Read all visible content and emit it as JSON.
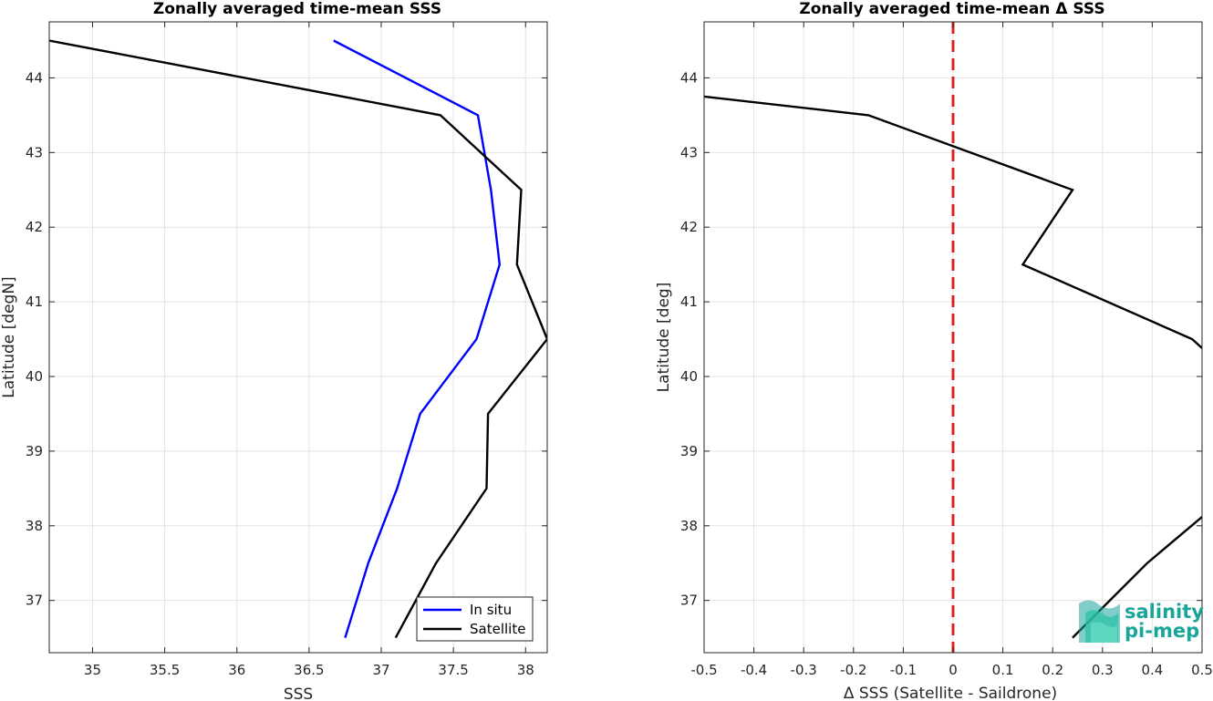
{
  "chart_data": [
    {
      "type": "line",
      "title": "Zonally averaged time-mean SSS",
      "xlabel": "SSS",
      "ylabel": "Latitude [degN]",
      "xlim": [
        34.7,
        38.15
      ],
      "ylim": [
        36.3,
        44.75
      ],
      "xticks": [
        "35",
        "35.5",
        "36",
        "36.5",
        "37",
        "37.5",
        "38"
      ],
      "yticks": [
        "37",
        "38",
        "39",
        "40",
        "41",
        "42",
        "43",
        "44"
      ],
      "grid": true,
      "legend_position": "bottom-right",
      "series": [
        {
          "name": "In situ",
          "color": "#0000ff",
          "points": [
            [
              36.67,
              44.5
            ],
            [
              37.67,
              43.5
            ],
            [
              37.76,
              42.5
            ],
            [
              37.82,
              41.5
            ],
            [
              37.66,
              40.5
            ],
            [
              37.27,
              39.5
            ],
            [
              37.11,
              38.5
            ],
            [
              36.91,
              37.5
            ],
            [
              36.75,
              36.5
            ]
          ]
        },
        {
          "name": "Satellite",
          "color": "#000000",
          "points": [
            [
              34.7,
              44.5
            ],
            [
              37.41,
              43.5
            ],
            [
              37.97,
              42.5
            ],
            [
              37.94,
              41.5
            ],
            [
              38.15,
              40.5
            ],
            [
              37.74,
              39.5
            ],
            [
              37.73,
              38.5
            ],
            [
              37.38,
              37.5
            ],
            [
              37.1,
              36.5
            ]
          ]
        }
      ]
    },
    {
      "type": "line",
      "title": "Zonally averaged time-mean Δ SSS",
      "xlabel": "Δ SSS (Satellite - Saildrone)",
      "ylabel": "Latitude [deg]",
      "xlim": [
        -0.5,
        0.5
      ],
      "ylim": [
        36.3,
        44.75
      ],
      "xticks": [
        "-0.5",
        "-0.4",
        "-0.3",
        "-0.2",
        "-0.1",
        "0",
        "0.1",
        "0.2",
        "0.3",
        "0.4",
        "0.5"
      ],
      "yticks": [
        "37",
        "38",
        "39",
        "40",
        "41",
        "42",
        "43",
        "44"
      ],
      "grid": true,
      "reference_line": {
        "x": 0,
        "color": "#e02020",
        "style": "dashed"
      },
      "series": [
        {
          "color": "#000000",
          "points": [
            [
              -0.5,
              43.75
            ],
            [
              -0.17,
              43.5
            ],
            [
              0.24,
              42.5
            ],
            [
              0.14,
              41.5
            ],
            [
              0.48,
              40.5
            ],
            [
              0.5,
              40.38
            ]
          ]
        },
        {
          "color": "#000000",
          "points": [
            [
              0.5,
              38.12
            ],
            [
              0.39,
              37.5
            ],
            [
              0.24,
              36.5
            ]
          ]
        }
      ]
    }
  ],
  "logo": {
    "line1": "salinity",
    "line2": "pi-mep",
    "color": "#1aa59a"
  }
}
